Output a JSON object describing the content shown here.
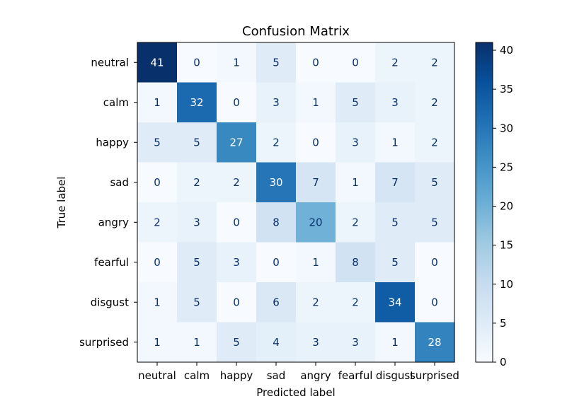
{
  "chart_data": {
    "type": "heatmap",
    "title": "Confusion Matrix",
    "xlabel": "Predicted label",
    "ylabel": "True label",
    "x_categories": [
      "neutral",
      "calm",
      "happy",
      "sad",
      "angry",
      "fearful",
      "disgust",
      "surprised"
    ],
    "y_categories": [
      "neutral",
      "calm",
      "happy",
      "sad",
      "angry",
      "fearful",
      "disgust",
      "surprised"
    ],
    "matrix": [
      [
        41,
        0,
        1,
        5,
        0,
        0,
        2,
        2
      ],
      [
        1,
        32,
        0,
        3,
        1,
        5,
        3,
        2
      ],
      [
        5,
        5,
        27,
        2,
        0,
        3,
        1,
        2
      ],
      [
        0,
        2,
        2,
        30,
        7,
        1,
        7,
        5
      ],
      [
        2,
        3,
        0,
        8,
        20,
        2,
        5,
        5
      ],
      [
        0,
        5,
        3,
        0,
        1,
        8,
        5,
        0
      ],
      [
        1,
        5,
        0,
        6,
        2,
        2,
        34,
        0
      ],
      [
        1,
        1,
        5,
        4,
        3,
        3,
        1,
        28
      ]
    ],
    "colormap": "Blues",
    "vmin": 0,
    "vmax": 41,
    "colorbar_ticks": [
      0,
      5,
      10,
      15,
      20,
      25,
      30,
      35,
      40
    ],
    "grid": false
  }
}
